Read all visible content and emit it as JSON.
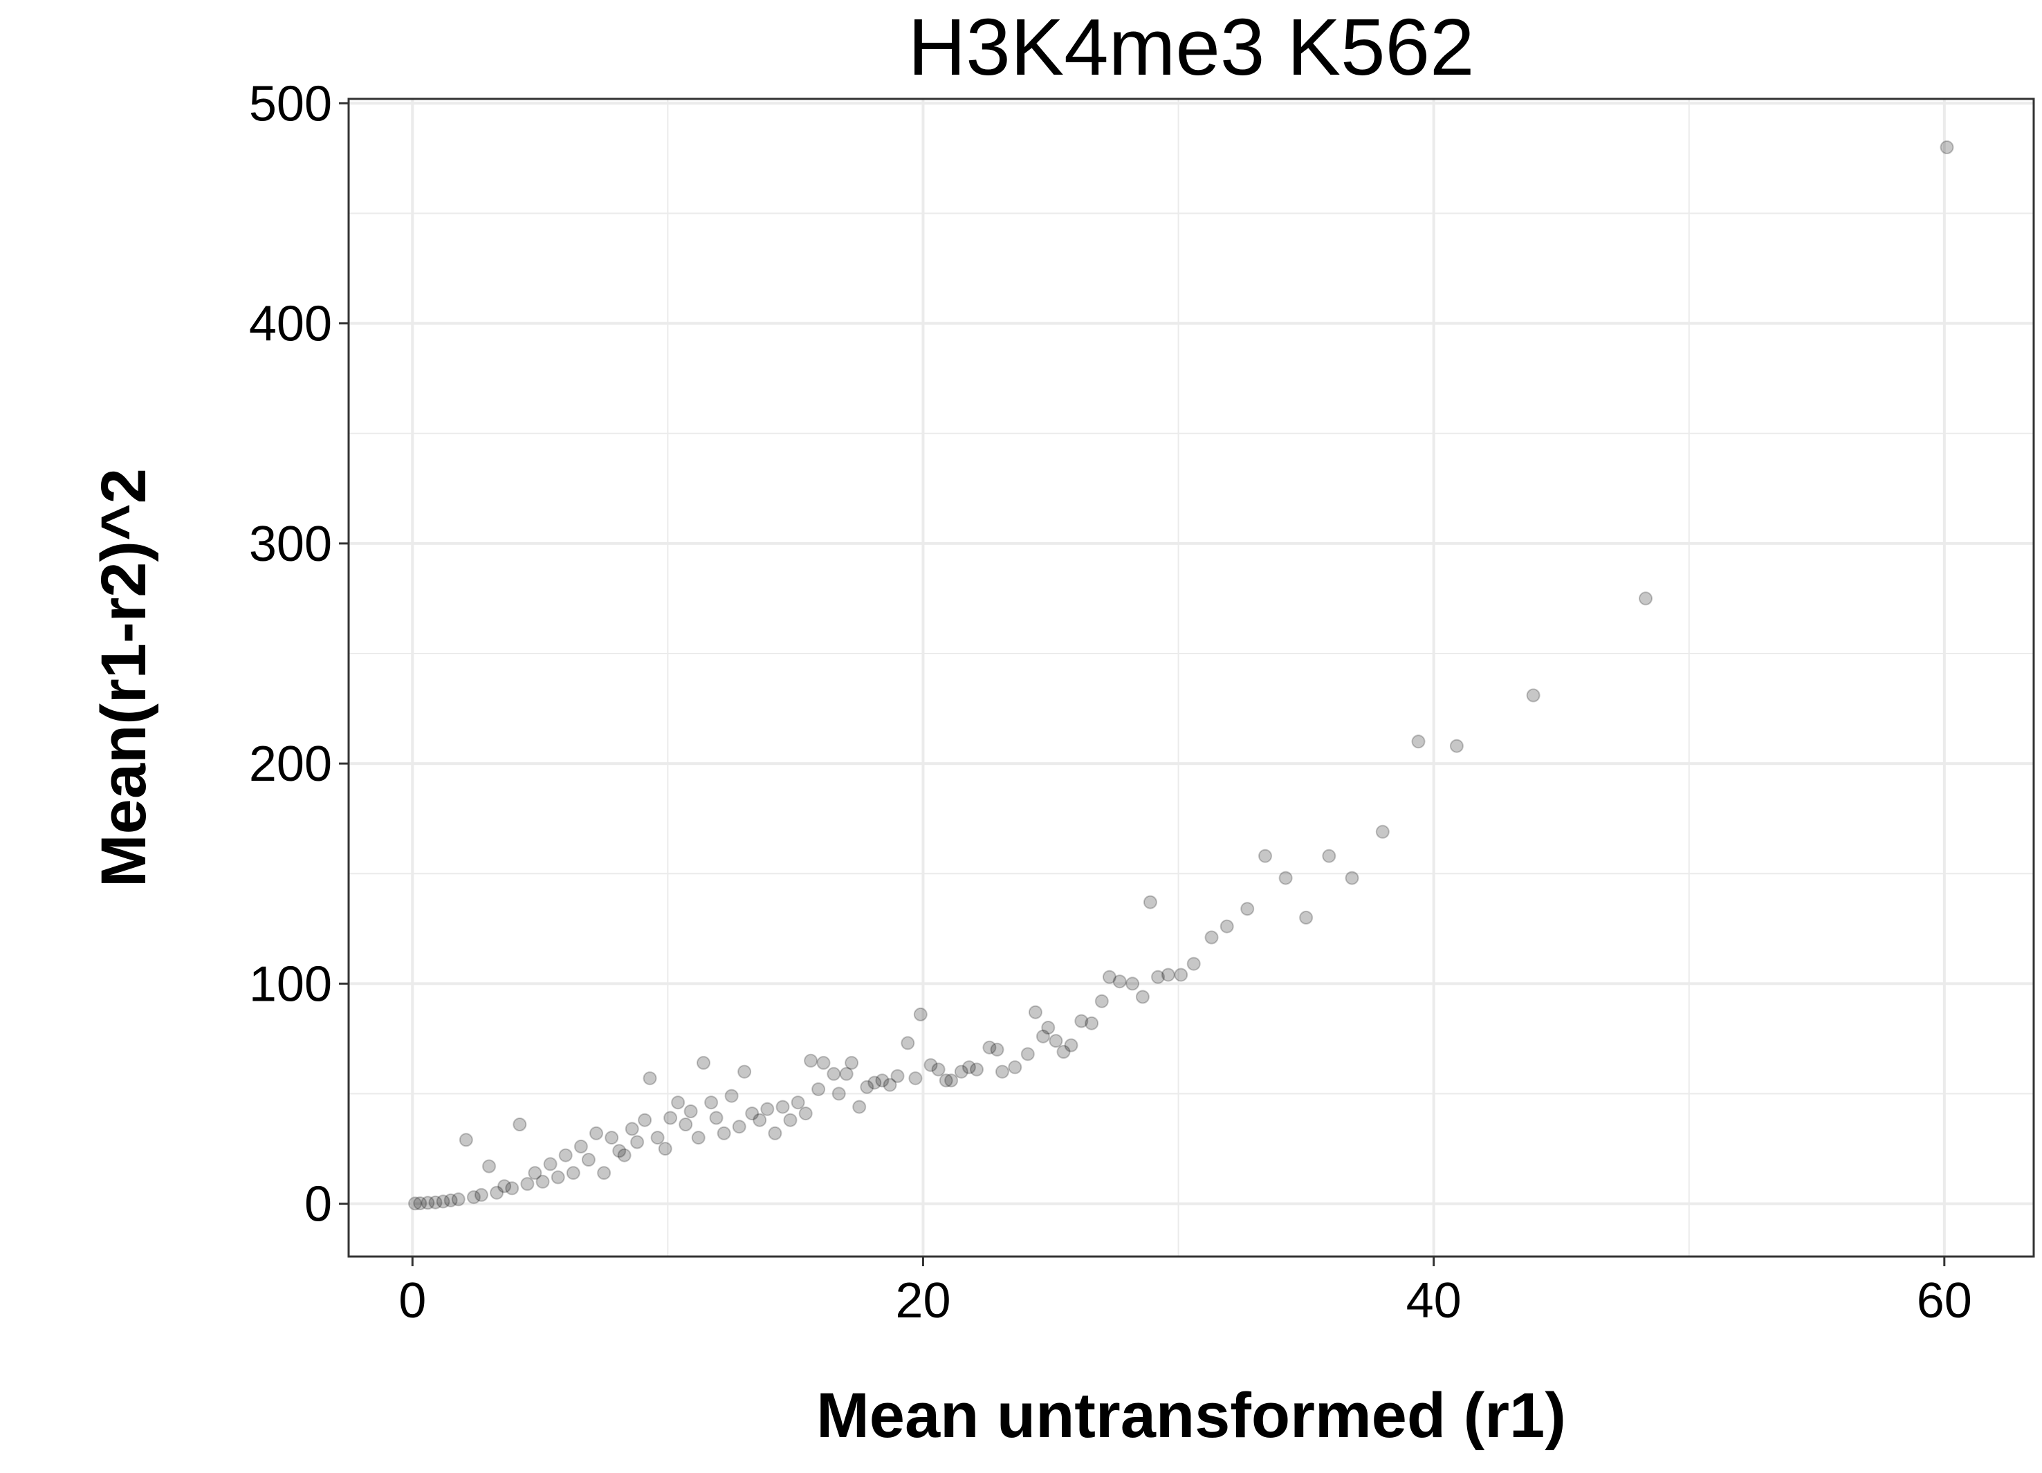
{
  "chart_data": {
    "type": "scatter",
    "title": "H3K4me3 K562",
    "xlabel": "Mean untransformed (r1)",
    "ylabel": "Mean(r1-r2)^2",
    "xlim": [
      -2.5,
      63.5
    ],
    "ylim": [
      -24,
      502
    ],
    "x_ticks": [
      0,
      20,
      40,
      60
    ],
    "x_tick_labels": [
      "0",
      "20",
      "40",
      "60"
    ],
    "y_ticks": [
      0,
      100,
      200,
      300,
      400,
      500
    ],
    "y_tick_labels": [
      "0",
      "100",
      "200",
      "300",
      "400",
      "500"
    ],
    "grid": true,
    "legend": "none",
    "colors": {
      "point": "#000000",
      "grid": "#ebebeb",
      "panel_border": "#333333"
    },
    "point_alpha": 0.22,
    "series": [
      {
        "points": [
          [
            60.1,
            480
          ],
          [
            48.3,
            275
          ],
          [
            43.9,
            231
          ],
          [
            40.9,
            208
          ],
          [
            39.4,
            210
          ],
          [
            38.0,
            169
          ],
          [
            36.8,
            148
          ],
          [
            35.9,
            158
          ],
          [
            35.0,
            130
          ],
          [
            34.2,
            148
          ],
          [
            33.4,
            158
          ],
          [
            32.7,
            134
          ],
          [
            31.9,
            126
          ],
          [
            31.3,
            121
          ],
          [
            30.6,
            109
          ],
          [
            30.1,
            104
          ],
          [
            29.6,
            104
          ],
          [
            29.2,
            103
          ],
          [
            28.9,
            137
          ],
          [
            28.6,
            94
          ],
          [
            28.2,
            100
          ],
          [
            27.7,
            101
          ],
          [
            27.3,
            103
          ],
          [
            27.0,
            92
          ],
          [
            26.6,
            82
          ],
          [
            26.2,
            83
          ],
          [
            25.8,
            72
          ],
          [
            25.5,
            69
          ],
          [
            25.2,
            74
          ],
          [
            24.9,
            80
          ],
          [
            24.7,
            76
          ],
          [
            24.4,
            87
          ],
          [
            24.1,
            68
          ],
          [
            23.6,
            62
          ],
          [
            23.1,
            60
          ],
          [
            22.9,
            70
          ],
          [
            22.6,
            71
          ],
          [
            22.1,
            61
          ],
          [
            21.8,
            62
          ],
          [
            21.5,
            60
          ],
          [
            21.1,
            56
          ],
          [
            20.9,
            56
          ],
          [
            20.6,
            61
          ],
          [
            20.3,
            63
          ],
          [
            19.9,
            86
          ],
          [
            19.7,
            57
          ],
          [
            19.4,
            73
          ],
          [
            19.0,
            58
          ],
          [
            18.7,
            54
          ],
          [
            18.4,
            56
          ],
          [
            18.1,
            55
          ],
          [
            17.8,
            53
          ],
          [
            17.5,
            44
          ],
          [
            17.2,
            64
          ],
          [
            17.0,
            59
          ],
          [
            16.7,
            50
          ],
          [
            16.5,
            59
          ],
          [
            16.1,
            64
          ],
          [
            15.9,
            52
          ],
          [
            15.6,
            65
          ],
          [
            15.4,
            41
          ],
          [
            15.1,
            46
          ],
          [
            14.8,
            38
          ],
          [
            14.5,
            44
          ],
          [
            14.2,
            32
          ],
          [
            13.9,
            43
          ],
          [
            13.6,
            38
          ],
          [
            13.3,
            41
          ],
          [
            13.0,
            60
          ],
          [
            12.8,
            35
          ],
          [
            12.5,
            49
          ],
          [
            12.2,
            32
          ],
          [
            11.9,
            39
          ],
          [
            11.7,
            46
          ],
          [
            11.4,
            64
          ],
          [
            11.2,
            30
          ],
          [
            10.9,
            42
          ],
          [
            10.7,
            36
          ],
          [
            10.4,
            46
          ],
          [
            10.1,
            39
          ],
          [
            9.9,
            25
          ],
          [
            9.6,
            30
          ],
          [
            9.3,
            57
          ],
          [
            9.1,
            38
          ],
          [
            8.8,
            28
          ],
          [
            8.6,
            34
          ],
          [
            8.3,
            22
          ],
          [
            8.1,
            24
          ],
          [
            7.8,
            30
          ],
          [
            7.5,
            14
          ],
          [
            7.2,
            32
          ],
          [
            6.9,
            20
          ],
          [
            6.6,
            26
          ],
          [
            6.3,
            14
          ],
          [
            6.0,
            22
          ],
          [
            5.7,
            12
          ],
          [
            5.4,
            18
          ],
          [
            5.1,
            10
          ],
          [
            4.8,
            14
          ],
          [
            4.5,
            9
          ],
          [
            4.2,
            36
          ],
          [
            3.9,
            7
          ],
          [
            3.6,
            8
          ],
          [
            3.3,
            5
          ],
          [
            3.0,
            17
          ],
          [
            2.7,
            4
          ],
          [
            2.4,
            3
          ],
          [
            2.1,
            29
          ],
          [
            1.8,
            2
          ],
          [
            1.5,
            1.5
          ],
          [
            1.2,
            1
          ],
          [
            0.9,
            0.6
          ],
          [
            0.6,
            0.4
          ],
          [
            0.3,
            0.2
          ],
          [
            0.1,
            0.1
          ]
        ]
      }
    ]
  }
}
